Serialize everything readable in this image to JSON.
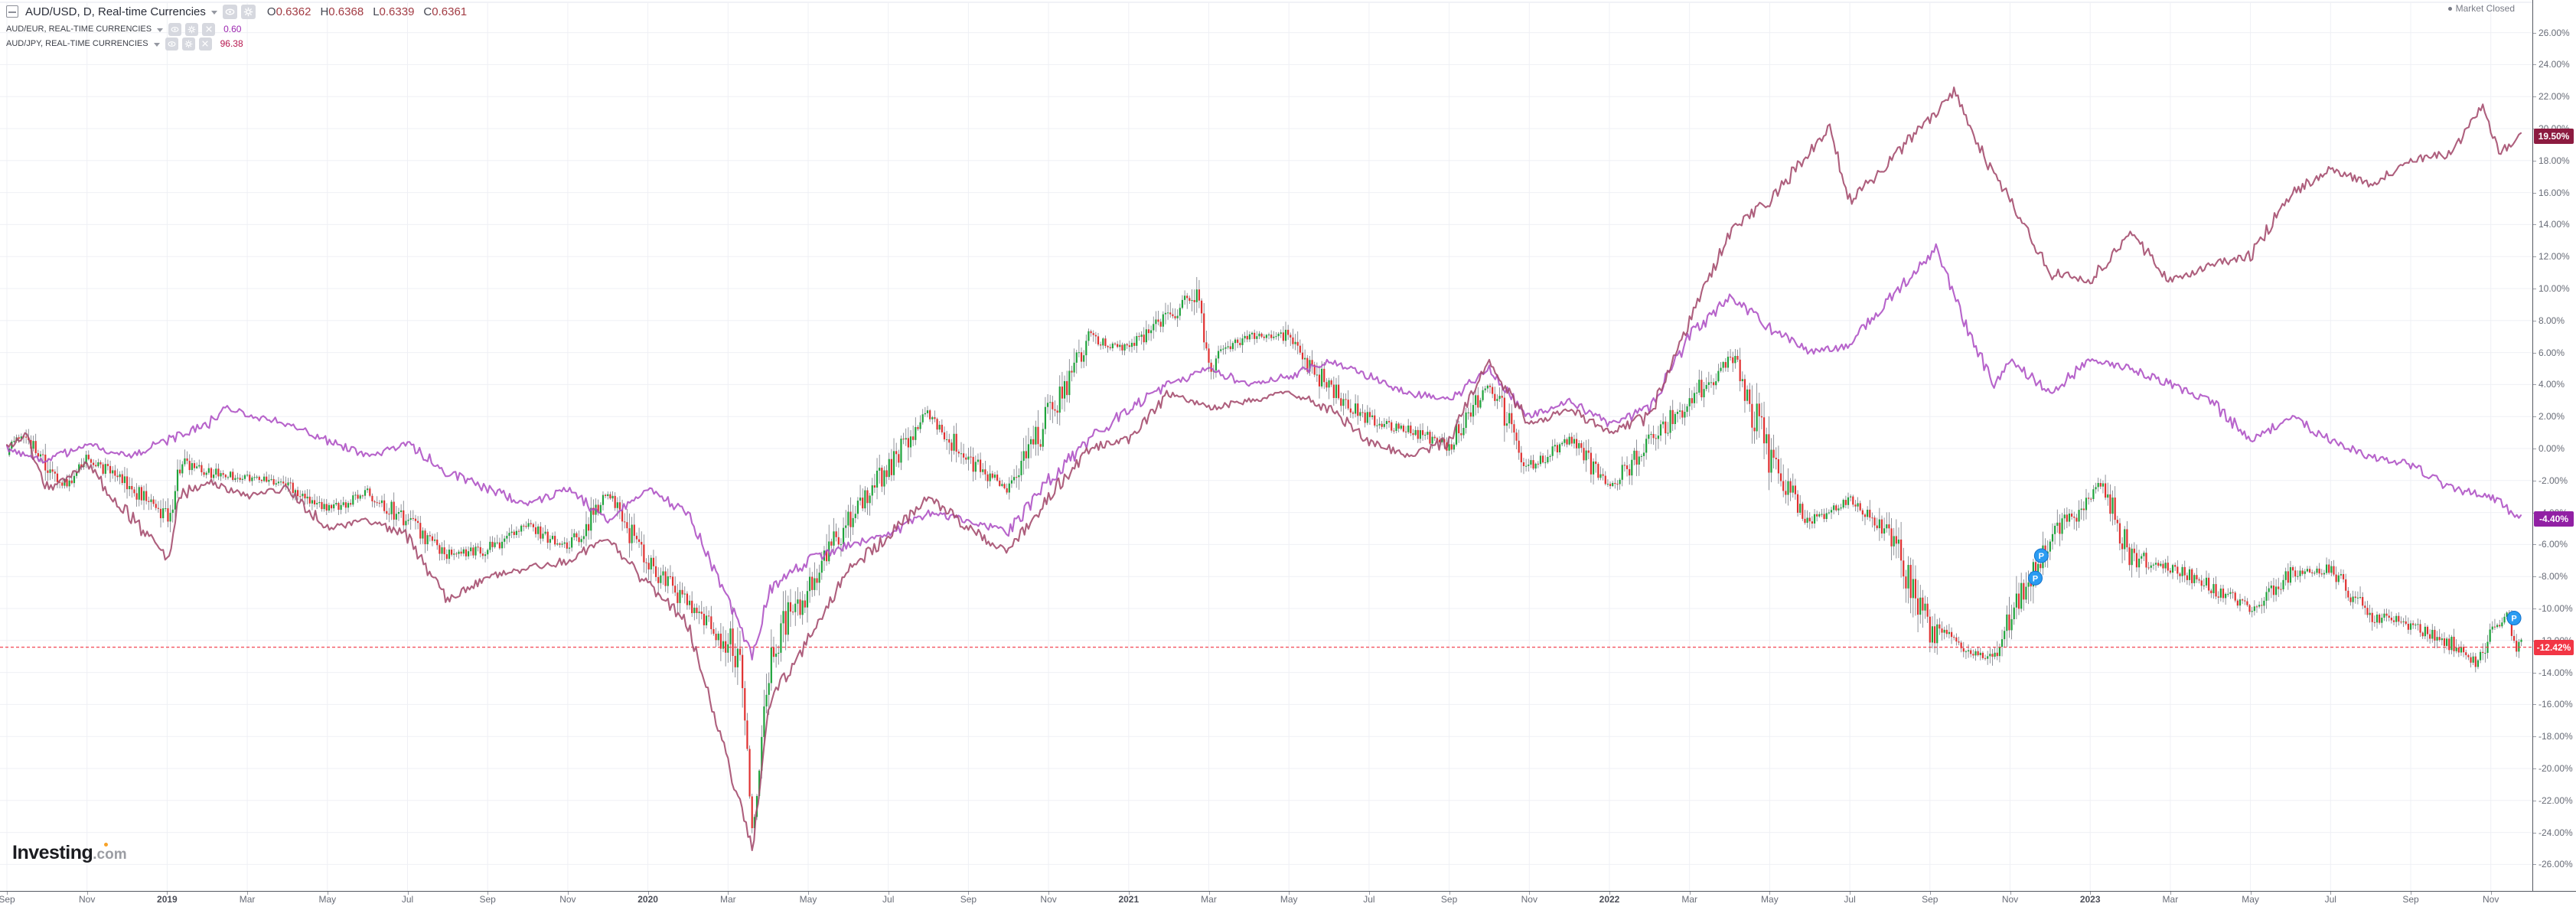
{
  "legend": {
    "main": {
      "title": "AUD/USD, D, Real-time Currencies",
      "ohlc": [
        {
          "k": "O",
          "v": "0.6362"
        },
        {
          "k": "H",
          "v": "0.6368"
        },
        {
          "k": "L",
          "v": "0.6339"
        },
        {
          "k": "C",
          "v": "0.6361"
        }
      ],
      "value_color": "#a23c44"
    },
    "overlays": [
      {
        "title": "AUD/EUR, REAL-TIME CURRENCIES",
        "value": "0.60",
        "value_color": "#9c27b0"
      },
      {
        "title": "AUD/JPY, REAL-TIME CURRENCIES",
        "value": "96.38",
        "value_color": "#b6174f"
      }
    ]
  },
  "status": {
    "market_label": "Market Closed"
  },
  "watermark": {
    "name": "Investing",
    "tld": ".com"
  },
  "y_axis": {
    "max": 26,
    "min": -26,
    "step": 2,
    "suffix": "%",
    "badges": [
      {
        "text": "19.50%",
        "value": 19.5,
        "color": "#8c1b40"
      },
      {
        "text": "-4.40%",
        "value": -4.4,
        "color": "#9120a4"
      },
      {
        "text": "-12.42%",
        "value": -12.42,
        "color": "#f23645"
      }
    ]
  },
  "x_axis": {
    "labels": [
      {
        "t": "Sep",
        "m": 0
      },
      {
        "t": "Nov",
        "m": 2
      },
      {
        "t": "2019",
        "m": 4,
        "year": true
      },
      {
        "t": "Mar",
        "m": 6
      },
      {
        "t": "May",
        "m": 8
      },
      {
        "t": "Jul",
        "m": 10
      },
      {
        "t": "Sep",
        "m": 12
      },
      {
        "t": "Nov",
        "m": 14
      },
      {
        "t": "2020",
        "m": 16,
        "year": true
      },
      {
        "t": "Mar",
        "m": 18
      },
      {
        "t": "May",
        "m": 20
      },
      {
        "t": "Jul",
        "m": 22
      },
      {
        "t": "Sep",
        "m": 24
      },
      {
        "t": "Nov",
        "m": 26
      },
      {
        "t": "2021",
        "m": 28,
        "year": true
      },
      {
        "t": "Mar",
        "m": 30
      },
      {
        "t": "May",
        "m": 32
      },
      {
        "t": "Jul",
        "m": 34
      },
      {
        "t": "Sep",
        "m": 36
      },
      {
        "t": "Nov",
        "m": 38
      },
      {
        "t": "2022",
        "m": 40,
        "year": true
      },
      {
        "t": "Mar",
        "m": 42
      },
      {
        "t": "May",
        "m": 44
      },
      {
        "t": "Jul",
        "m": 46
      },
      {
        "t": "Sep",
        "m": 48
      },
      {
        "t": "Nov",
        "m": 50
      },
      {
        "t": "2023",
        "m": 52,
        "year": true
      },
      {
        "t": "Mar",
        "m": 54
      },
      {
        "t": "May",
        "m": 56
      },
      {
        "t": "Jul",
        "m": 58
      },
      {
        "t": "Sep",
        "m": 60
      },
      {
        "t": "Nov",
        "m": 62
      }
    ]
  },
  "chart_data": {
    "type": "mixed",
    "title": "AUD/USD daily vs AUD/EUR and AUD/JPY, percent change",
    "x_unit": "months since Sep 2018",
    "y_unit": "percent change",
    "y_range": [
      -26,
      26
    ],
    "grid": true,
    "price_line": {
      "value": -12.42,
      "color": "#f23645"
    },
    "series": [
      {
        "name": "AUD/USD",
        "style": "candlestick",
        "up_color": "#1fa33c",
        "down_color": "#e03131",
        "wick_color": "#5d616b",
        "last_label": "-12.42%",
        "points": [
          [
            0,
            0
          ],
          [
            0.5,
            1
          ],
          [
            1,
            -1.5
          ],
          [
            1.5,
            -2.3
          ],
          [
            2,
            -0.5
          ],
          [
            3,
            -2.2
          ],
          [
            4.05,
            -4.5
          ],
          [
            4.3,
            -1
          ],
          [
            5,
            -1.5
          ],
          [
            6,
            -1.8
          ],
          [
            7,
            -2.2
          ],
          [
            8,
            -3.8
          ],
          [
            9,
            -2.8
          ],
          [
            10,
            -4.5
          ],
          [
            11,
            -6.7
          ],
          [
            12,
            -6.3
          ],
          [
            13,
            -4.8
          ],
          [
            14,
            -6.2
          ],
          [
            15,
            -2.8
          ],
          [
            16,
            -7
          ],
          [
            17,
            -9.8
          ],
          [
            18.3,
            -13
          ],
          [
            18.62,
            -24.3
          ],
          [
            19,
            -14
          ],
          [
            19.5,
            -10.5
          ],
          [
            20,
            -9
          ],
          [
            21,
            -4.3
          ],
          [
            22,
            -1.2
          ],
          [
            23,
            2.2
          ],
          [
            24,
            -0.8
          ],
          [
            25,
            -2.6
          ],
          [
            26,
            2
          ],
          [
            27,
            6.8
          ],
          [
            28,
            6.3
          ],
          [
            29.7,
            9.8
          ],
          [
            30,
            5.3
          ],
          [
            31,
            7.2
          ],
          [
            32,
            7
          ],
          [
            33,
            3.8
          ],
          [
            34,
            1.8
          ],
          [
            35,
            1.2
          ],
          [
            36,
            0.2
          ],
          [
            37,
            4.2
          ],
          [
            38,
            -1.2
          ],
          [
            39,
            0.6
          ],
          [
            40,
            -2.4
          ],
          [
            41,
            0.4
          ],
          [
            42.2,
            3.6
          ],
          [
            43.1,
            5.8
          ],
          [
            44,
            -0.6
          ],
          [
            45,
            -4.6
          ],
          [
            46,
            -3.2
          ],
          [
            47,
            -5.2
          ],
          [
            48,
            -11.3
          ],
          [
            49.5,
            -13.3
          ],
          [
            50.7,
            -7
          ],
          [
            51,
            -5.8
          ],
          [
            52.3,
            -2.2
          ],
          [
            53,
            -6.8
          ],
          [
            54,
            -7.4
          ],
          [
            55,
            -8.6
          ],
          [
            56,
            -10
          ],
          [
            57,
            -7.8
          ],
          [
            58,
            -7.6
          ],
          [
            59,
            -10.4
          ],
          [
            60,
            -11
          ],
          [
            61,
            -12.2
          ],
          [
            61.6,
            -13.4
          ],
          [
            62.4,
            -10.2
          ],
          [
            62.65,
            -12.7
          ],
          [
            62.75,
            -12.42
          ]
        ]
      },
      {
        "name": "AUD/EUR",
        "style": "line",
        "color": "#ad4fc4",
        "last_label": "-4.40%",
        "points": [
          [
            0,
            0
          ],
          [
            1,
            -0.8
          ],
          [
            2,
            0.3
          ],
          [
            3,
            -0.5
          ],
          [
            4,
            0.5
          ],
          [
            5,
            1.5
          ],
          [
            5.5,
            2.6
          ],
          [
            6,
            2.2
          ],
          [
            7,
            1.5
          ],
          [
            8,
            0.5
          ],
          [
            9,
            -0.5
          ],
          [
            10,
            0.3
          ],
          [
            11,
            -1.5
          ],
          [
            12,
            -2.5
          ],
          [
            13,
            -3.5
          ],
          [
            14,
            -2.5
          ],
          [
            15,
            -4.5
          ],
          [
            16,
            -2.5
          ],
          [
            17,
            -4
          ],
          [
            18.62,
            -13
          ],
          [
            19,
            -9
          ],
          [
            20,
            -7
          ],
          [
            21,
            -6
          ],
          [
            22,
            -5.5
          ],
          [
            23,
            -4
          ],
          [
            24,
            -4.5
          ],
          [
            25,
            -5.2
          ],
          [
            26,
            -2
          ],
          [
            27,
            0.5
          ],
          [
            28,
            2.5
          ],
          [
            29,
            4
          ],
          [
            30,
            5
          ],
          [
            31,
            4
          ],
          [
            32,
            4.5
          ],
          [
            33,
            5.5
          ],
          [
            34,
            4.5
          ],
          [
            35,
            3.5
          ],
          [
            36,
            3
          ],
          [
            37,
            5
          ],
          [
            38,
            2
          ],
          [
            39,
            3
          ],
          [
            40,
            1.5
          ],
          [
            41,
            2.5
          ],
          [
            42,
            7
          ],
          [
            43,
            9.5
          ],
          [
            44,
            7.5
          ],
          [
            45,
            6
          ],
          [
            46,
            6.5
          ],
          [
            47,
            9.5
          ],
          [
            48.15,
            12.4
          ],
          [
            49,
            7
          ],
          [
            49.6,
            4
          ],
          [
            50,
            5.5
          ],
          [
            51,
            3.5
          ],
          [
            52,
            5.5
          ],
          [
            53,
            5
          ],
          [
            54,
            4
          ],
          [
            55,
            3
          ],
          [
            56,
            0.5
          ],
          [
            57,
            2
          ],
          [
            58,
            0.5
          ],
          [
            59,
            -0.5
          ],
          [
            60,
            -1
          ],
          [
            61,
            -2.5
          ],
          [
            62,
            -3
          ],
          [
            62.75,
            -4.4
          ]
        ]
      },
      {
        "name": "AUD/JPY",
        "style": "line",
        "color": "#a3496b",
        "last_label": "19.50%",
        "points": [
          [
            0,
            0
          ],
          [
            0.5,
            0.8
          ],
          [
            1,
            -2.5
          ],
          [
            2,
            -1
          ],
          [
            3,
            -4
          ],
          [
            4.05,
            -7
          ],
          [
            4.3,
            -3
          ],
          [
            5,
            -2
          ],
          [
            6,
            -3
          ],
          [
            7,
            -2.5
          ],
          [
            8,
            -5
          ],
          [
            9,
            -4.5
          ],
          [
            10,
            -5.5
          ],
          [
            11,
            -9.5
          ],
          [
            12,
            -8
          ],
          [
            13,
            -7.5
          ],
          [
            14,
            -7
          ],
          [
            15,
            -5.5
          ],
          [
            16,
            -8.5
          ],
          [
            17,
            -11
          ],
          [
            18.62,
            -25
          ],
          [
            19,
            -16
          ],
          [
            20,
            -12
          ],
          [
            21,
            -7.5
          ],
          [
            22,
            -5.5
          ],
          [
            23,
            -3
          ],
          [
            24,
            -5
          ],
          [
            25,
            -6.5
          ],
          [
            26,
            -3
          ],
          [
            27,
            0
          ],
          [
            28,
            0.5
          ],
          [
            29,
            3.5
          ],
          [
            30,
            2.5
          ],
          [
            31,
            3
          ],
          [
            32,
            3.5
          ],
          [
            33,
            2.5
          ],
          [
            34,
            0.5
          ],
          [
            35,
            -0.5
          ],
          [
            36,
            0.5
          ],
          [
            37,
            5.5
          ],
          [
            38,
            1.5
          ],
          [
            39,
            2.5
          ],
          [
            40,
            1
          ],
          [
            41,
            2
          ],
          [
            42,
            8
          ],
          [
            43,
            13.5
          ],
          [
            44,
            15.5
          ],
          [
            45.5,
            20
          ],
          [
            46,
            15.5
          ],
          [
            47,
            18
          ],
          [
            48.6,
            22.3
          ],
          [
            49.5,
            17.5
          ],
          [
            50,
            15.5
          ],
          [
            51,
            11
          ],
          [
            52,
            10.5
          ],
          [
            53,
            13.5
          ],
          [
            54,
            10.5
          ],
          [
            55,
            11.5
          ],
          [
            56,
            12
          ],
          [
            57,
            16
          ],
          [
            58,
            17.5
          ],
          [
            59,
            16.5
          ],
          [
            60,
            18
          ],
          [
            61,
            18.5
          ],
          [
            61.8,
            21.5
          ],
          [
            62.2,
            18.5
          ],
          [
            62.75,
            19.5
          ]
        ]
      }
    ],
    "markers": [
      {
        "m": 50.63,
        "v": -8.1,
        "label": "P",
        "color": "#2b9cf2"
      },
      {
        "m": 50.78,
        "v": -6.7,
        "label": "P",
        "color": "#2b9cf2"
      },
      {
        "m": 62.58,
        "v": -10.6,
        "label": "P",
        "color": "#2b9cf2"
      }
    ]
  }
}
